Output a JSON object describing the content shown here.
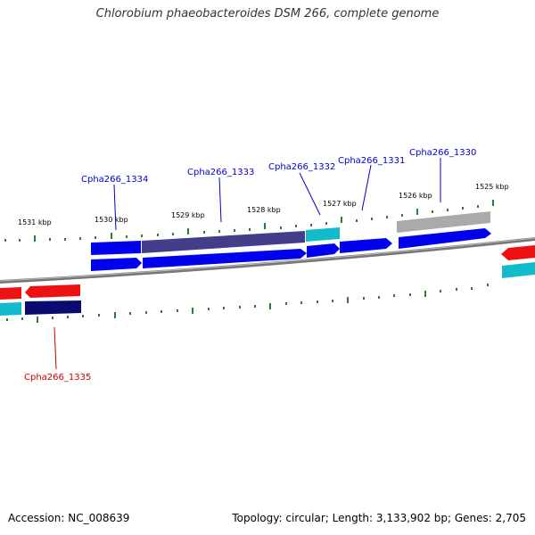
{
  "title": "Chlorobium phaeobacteroides DSM 266, complete genome",
  "footer": {
    "accession": "Accession: NC_008639",
    "topology": "Topology: circular; Length: 3,133,902 bp; Genes: 2,705"
  },
  "scale_labels": [
    "1531 kbp",
    "1530 kbp",
    "1529 kbp",
    "1528 kbp",
    "1527 kbp",
    "1526 kbp",
    "1525 kbp"
  ],
  "gene_labels": [
    "Cpha266_1334",
    "Cpha266_1333",
    "Cpha266_1332",
    "Cpha266_1331",
    "Cpha266_1330",
    "Cpha266_1335"
  ],
  "colors": {
    "backbone": "#888888",
    "tick": "#2e7d32",
    "label_blue": "#0000cc",
    "label_red": "#cc0000",
    "gene_blue": "#0000ee",
    "gene_dark": "#443d8a",
    "gene_navy": "#0a0a70",
    "gene_cyan": "#11bbcc",
    "gene_red": "#ee1111",
    "gene_gray": "#aaaaaa"
  }
}
